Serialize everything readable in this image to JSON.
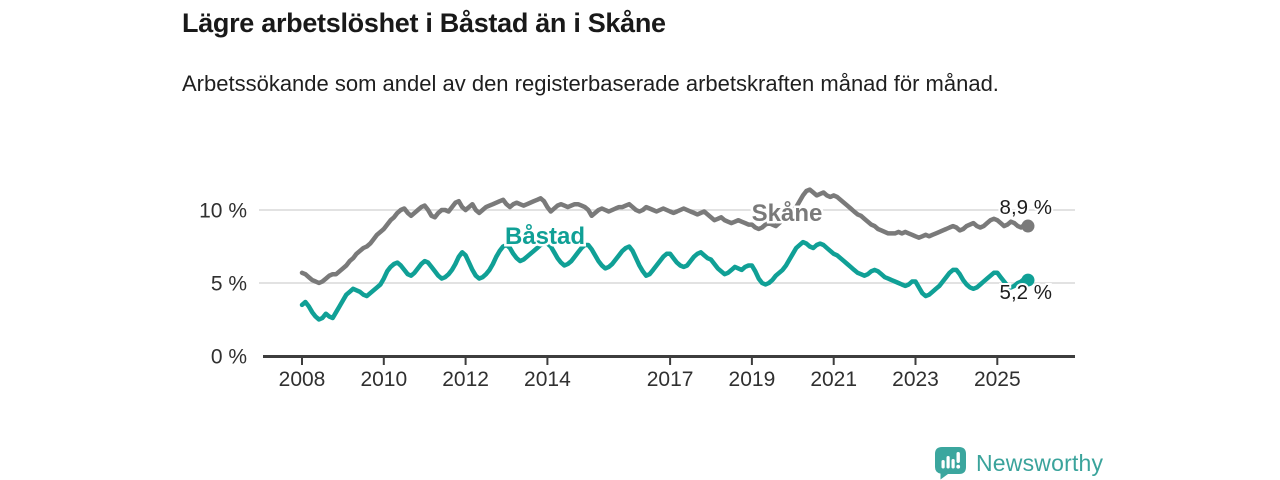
{
  "header": {
    "title": "Lägre arbetslöshet i Båstad än i Skåne",
    "subtitle": "Arbetssökande som andel av den registerbaserade arbetskraften månad för månad."
  },
  "footer": {
    "brand": "Newsworthy"
  },
  "colors": {
    "skane_line": "#7a7a7a",
    "bastad_line": "#10a096",
    "axis": "#3d3d3d",
    "grid": "#d9d9d9",
    "tick_text": "#303030",
    "value_text": "#1d1d1d",
    "brand_teal": "#3ba69e",
    "background": "#ffffff"
  },
  "chart_data": {
    "type": "line",
    "title": "Lägre arbetslöshet i Båstad än i Skåne",
    "subtitle": "Arbetssökande som andel av den registerbaserade arbetskraften månad för månad.",
    "x_start": "2008-01",
    "x_freq": "monthly",
    "x_end": "2025-10",
    "x_ticks": [
      "2008",
      "2010",
      "2012",
      "2014",
      "2017",
      "2019",
      "2021",
      "2023",
      "2025"
    ],
    "y_ticks": [
      {
        "label": "0 %",
        "value": 0
      },
      {
        "label": "5 %",
        "value": 5
      },
      {
        "label": "10 %",
        "value": 10
      }
    ],
    "ylim": [
      0,
      12.5
    ],
    "grid": "horizontal",
    "legend_position": "inline-labels",
    "series": [
      {
        "name": "Skåne",
        "color": "#7a7a7a",
        "end_label": "8,9 %",
        "last_value": 8.9,
        "values": [
          5.7,
          5.6,
          5.4,
          5.2,
          5.1,
          5.0,
          5.1,
          5.3,
          5.5,
          5.6,
          5.6,
          5.8,
          6.0,
          6.2,
          6.5,
          6.7,
          7.0,
          7.2,
          7.4,
          7.5,
          7.7,
          8.0,
          8.3,
          8.5,
          8.7,
          9.0,
          9.3,
          9.5,
          9.8,
          10.0,
          10.1,
          9.8,
          9.6,
          9.8,
          10.0,
          10.2,
          10.3,
          10.0,
          9.6,
          9.5,
          9.8,
          10.0,
          10.0,
          9.9,
          10.2,
          10.5,
          10.6,
          10.2,
          10.0,
          10.2,
          10.4,
          10.0,
          9.8,
          10.0,
          10.2,
          10.3,
          10.4,
          10.5,
          10.6,
          10.7,
          10.4,
          10.2,
          10.4,
          10.5,
          10.4,
          10.3,
          10.4,
          10.5,
          10.6,
          10.7,
          10.8,
          10.6,
          10.2,
          9.9,
          10.1,
          10.3,
          10.4,
          10.3,
          10.2,
          10.3,
          10.4,
          10.4,
          10.3,
          10.2,
          10.0,
          9.6,
          9.8,
          10.0,
          10.1,
          10.0,
          9.9,
          10.0,
          10.1,
          10.2,
          10.2,
          10.3,
          10.4,
          10.2,
          10.0,
          9.9,
          10.0,
          10.2,
          10.1,
          10.0,
          9.9,
          10.0,
          10.1,
          10.0,
          9.9,
          9.8,
          9.9,
          10.0,
          10.1,
          10.0,
          9.9,
          9.8,
          9.7,
          9.8,
          9.9,
          9.7,
          9.5,
          9.3,
          9.4,
          9.5,
          9.3,
          9.2,
          9.1,
          9.2,
          9.3,
          9.2,
          9.1,
          9.0,
          9.0,
          8.8,
          8.7,
          8.8,
          9.0,
          9.1,
          9.0,
          8.9,
          9.1,
          9.3,
          9.5,
          9.8,
          10.0,
          10.2,
          10.6,
          11.0,
          11.3,
          11.4,
          11.2,
          11.0,
          11.1,
          11.2,
          11.0,
          10.9,
          11.0,
          10.9,
          10.7,
          10.5,
          10.3,
          10.1,
          9.9,
          9.7,
          9.6,
          9.4,
          9.2,
          9.0,
          8.9,
          8.7,
          8.6,
          8.5,
          8.4,
          8.4,
          8.4,
          8.5,
          8.4,
          8.5,
          8.4,
          8.3,
          8.2,
          8.1,
          8.2,
          8.3,
          8.2,
          8.3,
          8.4,
          8.5,
          8.6,
          8.7,
          8.8,
          8.9,
          8.8,
          8.6,
          8.7,
          8.9,
          9.0,
          9.1,
          8.9,
          8.8,
          8.9,
          9.1,
          9.3,
          9.4,
          9.3,
          9.1,
          8.9,
          9.0,
          9.2,
          9.1,
          8.9,
          8.8,
          9.0,
          8.9
        ]
      },
      {
        "name": "Båstad",
        "color": "#10a096",
        "end_label": "5,2 %",
        "last_value": 5.2,
        "values": [
          3.5,
          3.7,
          3.4,
          3.0,
          2.7,
          2.5,
          2.6,
          2.9,
          2.7,
          2.6,
          3.0,
          3.4,
          3.8,
          4.2,
          4.4,
          4.6,
          4.5,
          4.4,
          4.2,
          4.1,
          4.3,
          4.5,
          4.7,
          4.9,
          5.3,
          5.8,
          6.1,
          6.3,
          6.4,
          6.2,
          5.9,
          5.6,
          5.5,
          5.7,
          6.0,
          6.3,
          6.5,
          6.4,
          6.1,
          5.8,
          5.5,
          5.3,
          5.4,
          5.6,
          5.9,
          6.3,
          6.8,
          7.1,
          6.9,
          6.4,
          5.9,
          5.5,
          5.3,
          5.4,
          5.6,
          5.9,
          6.3,
          6.8,
          7.2,
          7.5,
          7.6,
          7.4,
          7.0,
          6.7,
          6.5,
          6.6,
          6.8,
          7.0,
          7.2,
          7.4,
          7.6,
          7.7,
          7.7,
          7.5,
          7.1,
          6.7,
          6.4,
          6.2,
          6.3,
          6.5,
          6.8,
          7.1,
          7.4,
          7.6,
          7.6,
          7.3,
          6.9,
          6.5,
          6.2,
          6.0,
          6.1,
          6.3,
          6.6,
          6.9,
          7.2,
          7.4,
          7.5,
          7.2,
          6.7,
          6.2,
          5.8,
          5.5,
          5.6,
          5.9,
          6.2,
          6.5,
          6.8,
          7.0,
          7.0,
          6.7,
          6.4,
          6.2,
          6.1,
          6.2,
          6.5,
          6.8,
          7.0,
          7.1,
          6.9,
          6.7,
          6.6,
          6.3,
          6.0,
          5.8,
          5.6,
          5.7,
          5.9,
          6.1,
          6.0,
          5.9,
          6.1,
          6.2,
          6.2,
          5.8,
          5.3,
          5.0,
          4.9,
          5.0,
          5.2,
          5.5,
          5.7,
          5.9,
          6.2,
          6.6,
          7.0,
          7.4,
          7.6,
          7.8,
          7.7,
          7.5,
          7.4,
          7.6,
          7.7,
          7.6,
          7.4,
          7.2,
          7.0,
          6.9,
          6.7,
          6.5,
          6.3,
          6.1,
          5.9,
          5.7,
          5.6,
          5.5,
          5.6,
          5.8,
          5.9,
          5.8,
          5.6,
          5.4,
          5.3,
          5.2,
          5.1,
          5.0,
          4.9,
          4.8,
          4.9,
          5.1,
          5.1,
          4.7,
          4.3,
          4.1,
          4.2,
          4.4,
          4.6,
          4.8,
          5.1,
          5.4,
          5.7,
          5.9,
          5.9,
          5.6,
          5.2,
          4.9,
          4.7,
          4.6,
          4.7,
          4.9,
          5.1,
          5.3,
          5.5,
          5.7,
          5.7,
          5.4,
          5.1,
          4.8,
          4.7,
          4.8,
          5.0,
          5.1,
          5.3,
          5.2
        ]
      }
    ]
  }
}
